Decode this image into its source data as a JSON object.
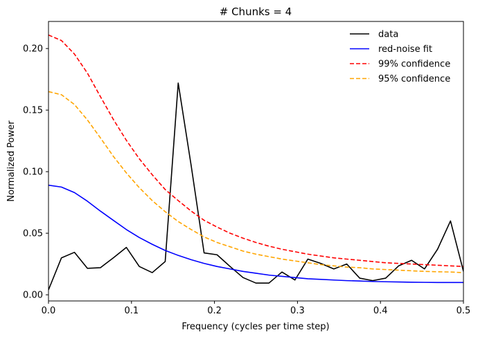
{
  "chart_data": {
    "type": "line",
    "title": "# Chunks = 4",
    "xlabel": "Frequency (cycles per time step)",
    "ylabel": "Normalized Power",
    "xlim": [
      0.0,
      0.5
    ],
    "ylim": [
      -0.005,
      0.222
    ],
    "xticks": [
      0.0,
      0.1,
      0.2,
      0.3,
      0.4,
      0.5
    ],
    "xtick_labels": [
      "0.0",
      "0.1",
      "0.2",
      "0.3",
      "0.4",
      "0.5"
    ],
    "yticks": [
      0.0,
      0.05,
      0.1,
      0.15,
      0.2
    ],
    "ytick_labels": [
      "0.00",
      "0.05",
      "0.10",
      "0.15",
      "0.20"
    ],
    "legend_position": "top-right",
    "series": [
      {
        "name": "data",
        "color": "#000000",
        "style": "solid",
        "x": [
          0.0,
          0.0156,
          0.0313,
          0.0469,
          0.0625,
          0.0781,
          0.0938,
          0.1094,
          0.125,
          0.1406,
          0.1563,
          0.1719,
          0.1875,
          0.2031,
          0.2188,
          0.2344,
          0.25,
          0.2656,
          0.2813,
          0.2969,
          0.3125,
          0.3281,
          0.3438,
          0.3594,
          0.375,
          0.3906,
          0.4063,
          0.4219,
          0.4375,
          0.4531,
          0.4688,
          0.4844,
          0.5
        ],
        "y": [
          0.004,
          0.03,
          0.0345,
          0.0215,
          0.022,
          0.03,
          0.0385,
          0.023,
          0.018,
          0.027,
          0.172,
          0.105,
          0.034,
          0.0325,
          0.023,
          0.014,
          0.0095,
          0.0095,
          0.0185,
          0.012,
          0.029,
          0.0255,
          0.021,
          0.025,
          0.0135,
          0.0115,
          0.0135,
          0.0235,
          0.028,
          0.021,
          0.037,
          0.06,
          0.019
        ]
      },
      {
        "name": "red-noise fit",
        "color": "#0000ff",
        "style": "solid",
        "x": [
          0.0,
          0.0156,
          0.0313,
          0.0469,
          0.0625,
          0.0781,
          0.0938,
          0.1094,
          0.125,
          0.1406,
          0.1563,
          0.1719,
          0.1875,
          0.2031,
          0.2188,
          0.2344,
          0.25,
          0.2656,
          0.2813,
          0.2969,
          0.3125,
          0.3281,
          0.3438,
          0.3594,
          0.375,
          0.3906,
          0.4063,
          0.4219,
          0.4375,
          0.4531,
          0.4688,
          0.4844,
          0.5
        ],
        "y": [
          0.089,
          0.0875,
          0.083,
          0.076,
          0.068,
          0.0605,
          0.053,
          0.0465,
          0.041,
          0.036,
          0.032,
          0.0285,
          0.0255,
          0.023,
          0.021,
          0.019,
          0.0175,
          0.016,
          0.015,
          0.014,
          0.013,
          0.0125,
          0.012,
          0.0115,
          0.0112,
          0.0108,
          0.0106,
          0.0104,
          0.0102,
          0.0101,
          0.01,
          0.01,
          0.01
        ]
      },
      {
        "name": "99% confidence",
        "color": "#ff0000",
        "style": "dashed",
        "x": [
          0.0,
          0.0156,
          0.0313,
          0.0469,
          0.0625,
          0.0781,
          0.0938,
          0.1094,
          0.125,
          0.1406,
          0.1563,
          0.1719,
          0.1875,
          0.2031,
          0.2188,
          0.2344,
          0.25,
          0.2656,
          0.2813,
          0.2969,
          0.3125,
          0.3281,
          0.3438,
          0.3594,
          0.375,
          0.3906,
          0.4063,
          0.4219,
          0.4375,
          0.4531,
          0.4688,
          0.4844,
          0.5
        ],
        "y": [
          0.211,
          0.2065,
          0.1955,
          0.18,
          0.161,
          0.1425,
          0.1255,
          0.1105,
          0.0975,
          0.0855,
          0.0765,
          0.068,
          0.0605,
          0.055,
          0.05,
          0.046,
          0.0425,
          0.0395,
          0.037,
          0.035,
          0.033,
          0.0315,
          0.03,
          0.029,
          0.028,
          0.027,
          0.026,
          0.0255,
          0.025,
          0.0245,
          0.024,
          0.0235,
          0.023
        ]
      },
      {
        "name": "95% confidence",
        "color": "#ffa500",
        "style": "dashed",
        "x": [
          0.0,
          0.0156,
          0.0313,
          0.0469,
          0.0625,
          0.0781,
          0.0938,
          0.1094,
          0.125,
          0.1406,
          0.1563,
          0.1719,
          0.1875,
          0.2031,
          0.2188,
          0.2344,
          0.25,
          0.2656,
          0.2813,
          0.2969,
          0.3125,
          0.3281,
          0.3438,
          0.3594,
          0.375,
          0.3906,
          0.4063,
          0.4219,
          0.4375,
          0.4531,
          0.4688,
          0.4844,
          0.5
        ],
        "y": [
          0.165,
          0.1625,
          0.1545,
          0.142,
          0.1275,
          0.1125,
          0.099,
          0.087,
          0.0765,
          0.0675,
          0.0595,
          0.053,
          0.047,
          0.0425,
          0.039,
          0.0355,
          0.033,
          0.031,
          0.029,
          0.0275,
          0.026,
          0.0245,
          0.0235,
          0.0225,
          0.022,
          0.021,
          0.0205,
          0.02,
          0.0195,
          0.019,
          0.0187,
          0.0185,
          0.018
        ]
      }
    ]
  }
}
